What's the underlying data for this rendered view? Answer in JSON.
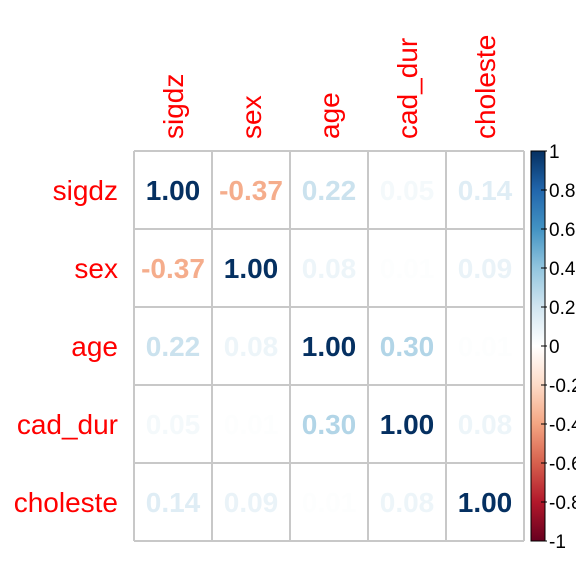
{
  "chart_data": {
    "type": "heatmap",
    "variables": [
      "sigdz",
      "sex",
      "age",
      "cad_dur",
      "choleste"
    ],
    "matrix": [
      [
        1.0,
        -0.37,
        0.22,
        0.05,
        0.14
      ],
      [
        -0.37,
        1.0,
        0.08,
        0.01,
        0.09
      ],
      [
        0.22,
        0.08,
        1.0,
        0.3,
        0.01
      ],
      [
        0.05,
        0.01,
        0.3,
        1.0,
        0.08
      ],
      [
        0.14,
        0.09,
        0.01,
        0.08,
        1.0
      ]
    ],
    "colorbar": {
      "ticks": [
        -1,
        -0.8,
        -0.6,
        -0.4,
        -0.2,
        0,
        0.2,
        0.4,
        0.6,
        0.8,
        1
      ],
      "tick_labels": [
        "-1",
        "-0.8",
        "-0.6",
        "-0.4",
        "-0.2",
        "0",
        "0.2",
        "0.4",
        "0.6",
        "0.8",
        "1"
      ],
      "range": [
        -1,
        1
      ]
    },
    "label_color": "#ff0000",
    "grid": true
  }
}
